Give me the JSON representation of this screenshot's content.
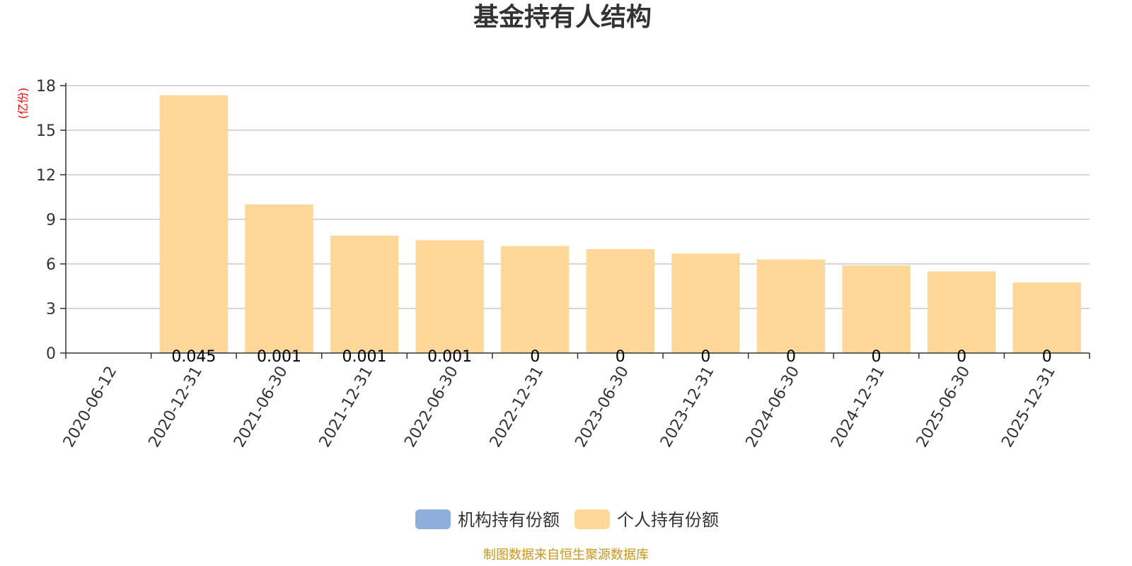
{
  "chart_data": {
    "type": "bar",
    "stacked": true,
    "title": "基金持有人结构",
    "unit": "(亿份)",
    "categories": [
      "2020-06-12",
      "2020-12-31",
      "2021-06-30",
      "2021-12-31",
      "2022-06-30",
      "2022-12-31",
      "2023-06-30",
      "2023-12-31",
      "2024-06-30",
      "2024-12-31",
      "2025-06-30",
      "2025-12-31"
    ],
    "series": [
      {
        "name": "机构持有份额",
        "color": "#8eaedb",
        "values": [
          null,
          0.045,
          0.001,
          0.001,
          0.001,
          0,
          0,
          0,
          0,
          0,
          0,
          0
        ],
        "labels": [
          "",
          "0.045",
          "0.001",
          "0.001",
          "0.001",
          "0",
          "0",
          "0",
          "0",
          "0",
          "0",
          "0"
        ]
      },
      {
        "name": "个人持有份额",
        "color": "#ffd899",
        "values": [
          null,
          17.3,
          10.0,
          7.9,
          7.6,
          7.2,
          7.0,
          6.7,
          6.3,
          5.9,
          5.5,
          4.75
        ]
      }
    ],
    "ylim": [
      0,
      18
    ],
    "yticks": [
      0,
      3,
      6,
      9,
      12,
      15,
      18
    ],
    "grid": true,
    "legend_position": "bottom-center"
  },
  "source_note": "制图数据来自恒生聚源数据库"
}
